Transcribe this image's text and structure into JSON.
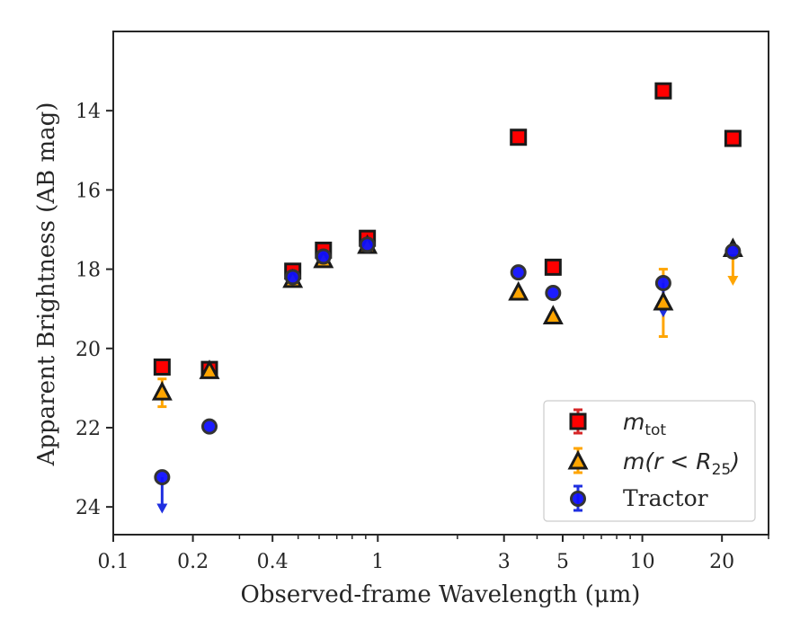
{
  "chart_data": {
    "type": "scatter",
    "xlabel": "Observed-frame Wavelength (μm)",
    "ylabel": "Apparent Brightness (AB mag)",
    "x_scale": "log",
    "xlim": [
      0.1,
      30
    ],
    "ylim": [
      24.7,
      12.0
    ],
    "y_inverted": true,
    "x_ticks": [
      0.1,
      0.2,
      0.4,
      1,
      3,
      5,
      10,
      20
    ],
    "x_tick_labels": [
      "0.1",
      "0.2",
      "0.4",
      "1",
      "3",
      "5",
      "10",
      "20"
    ],
    "y_ticks": [
      14,
      16,
      18,
      20,
      22,
      24
    ],
    "y_tick_labels": [
      "14",
      "16",
      "18",
      "20",
      "22",
      "24"
    ],
    "grid": false,
    "legend_position": "lower-right",
    "colors": {
      "m_tot_face": "#ff0000",
      "m_tot_error": "#d62728",
      "m_r25_face": "#ffa500",
      "m_r25_error": "#ffa500",
      "tractor_face": "#1010ff",
      "tractor_error": "#1f2fe0",
      "marker_edge": "#1a1a1a",
      "axes": "#262626"
    },
    "series": [
      {
        "name": "m_tot",
        "marker": "square",
        "points": [
          {
            "x": 0.153,
            "y": 20.47,
            "err": 0.0
          },
          {
            "x": 0.231,
            "y": 20.53,
            "err": 0.0
          },
          {
            "x": 0.477,
            "y": 18.05,
            "err": 0.0
          },
          {
            "x": 0.623,
            "y": 17.52,
            "err": 0.0
          },
          {
            "x": 0.913,
            "y": 17.22,
            "err": 0.0
          },
          {
            "x": 3.4,
            "y": 14.67,
            "err": 0.0
          },
          {
            "x": 4.6,
            "y": 17.95,
            "err": 0.0
          },
          {
            "x": 12.0,
            "y": 13.5,
            "err": 0.0
          },
          {
            "x": 22.0,
            "y": 14.7,
            "err": 0.0
          }
        ]
      },
      {
        "name": "m(r < R25)",
        "marker": "triangle",
        "points": [
          {
            "x": 0.153,
            "y": 21.12,
            "err": 0.35
          },
          {
            "x": 0.231,
            "y": 20.58,
            "err": 0.0
          },
          {
            "x": 0.477,
            "y": 18.28,
            "err": 0.0
          },
          {
            "x": 0.623,
            "y": 17.78,
            "err": 0.0
          },
          {
            "x": 0.913,
            "y": 17.42,
            "err": 0.0
          },
          {
            "x": 3.4,
            "y": 18.6,
            "err": 0.0
          },
          {
            "x": 4.6,
            "y": 19.2,
            "err": 0.0
          },
          {
            "x": 12.0,
            "y": 18.85,
            "err": 0.85
          },
          {
            "x": 22.0,
            "y": 17.5,
            "err": 0.0,
            "upper_limit": true,
            "arrow_to": 18.35
          }
        ]
      },
      {
        "name": "Tractor",
        "marker": "circle",
        "points": [
          {
            "x": 0.153,
            "y": 23.25,
            "err": 0.0,
            "upper_limit": true,
            "arrow_to": 24.1
          },
          {
            "x": 0.231,
            "y": 21.97,
            "err": 0.0
          },
          {
            "x": 0.477,
            "y": 18.2,
            "err": 0.0
          },
          {
            "x": 0.623,
            "y": 17.68,
            "err": 0.0
          },
          {
            "x": 0.913,
            "y": 17.38,
            "err": 0.0
          },
          {
            "x": 3.4,
            "y": 18.08,
            "err": 0.0
          },
          {
            "x": 4.6,
            "y": 18.6,
            "err": 0.0
          },
          {
            "x": 12.0,
            "y": 18.35,
            "err": 0.0,
            "upper_limit": true,
            "arrow_to": 19.15
          },
          {
            "x": 22.0,
            "y": 17.55,
            "err": 0.0
          }
        ]
      }
    ],
    "legend": {
      "m_tot": {
        "main": "m",
        "sub": "tot"
      },
      "m_r25": {
        "main": "m(r < R",
        "sub": "25",
        "close": ")"
      },
      "tractor": {
        "label": "Tractor"
      }
    }
  }
}
